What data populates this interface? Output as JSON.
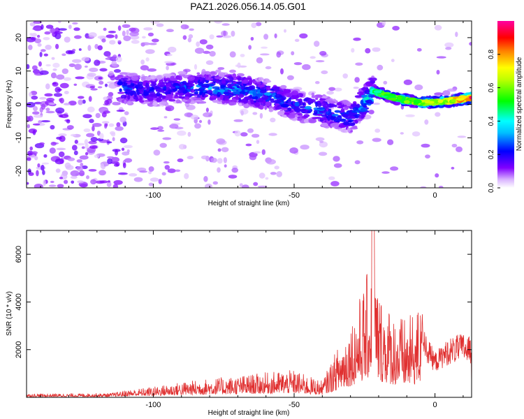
{
  "figure": {
    "title": "PAZ1.2026.056.14.05.G01"
  },
  "chart_data": [
    {
      "type": "heatmap",
      "name": "spectrogram",
      "xlabel": "Height of straight line (km)",
      "ylabel": "Frequency (Hz)",
      "xlim": [
        -145,
        13
      ],
      "ylim": [
        -25,
        25
      ],
      "x_ticks": [
        -100,
        -50,
        0
      ],
      "y_ticks": [
        -20,
        -10,
        0,
        10,
        20
      ],
      "colorbar": {
        "label": "Normalized spectral amplitude",
        "ticks": [
          0.0,
          0.2,
          0.4,
          0.6,
          0.8
        ],
        "range": [
          0,
          1
        ],
        "colormap": [
          "#ffffff",
          "#c070ff",
          "#8000ff",
          "#0000ff",
          "#00ffff",
          "#00ff00",
          "#ffff00",
          "#ff8000",
          "#ff0000",
          "#ff00ff"
        ]
      },
      "ridge": {
        "x": [
          -112,
          -100,
          -90,
          -80,
          -70,
          -60,
          -50,
          -40,
          -30,
          -22,
          -15,
          -5,
          5,
          13
        ],
        "frequency": [
          5,
          4,
          5,
          5,
          4.5,
          3,
          0,
          -2,
          -4,
          4,
          2,
          0.5,
          1,
          2
        ],
        "amplitude": [
          0.25,
          0.22,
          0.25,
          0.3,
          0.3,
          0.28,
          0.24,
          0.28,
          0.25,
          0.45,
          0.55,
          0.6,
          0.65,
          0.85
        ]
      }
    },
    {
      "type": "line",
      "name": "snr",
      "xlabel": "Height of straight line (km)",
      "ylabel": "SNR (10 * v/v)",
      "xlim": [
        -145,
        13
      ],
      "ylim": [
        0,
        7000
      ],
      "x_ticks": [
        -100,
        -50,
        0
      ],
      "y_ticks": [
        2000,
        4000,
        6000
      ],
      "series": [
        {
          "name": "SNR",
          "color": "#e03030",
          "envelope_x": [
            -145,
            -130,
            -115,
            -110,
            -100,
            -90,
            -80,
            -70,
            -60,
            -50,
            -45,
            -40,
            -35,
            -30,
            -25,
            -22,
            -20,
            -15,
            -10,
            -5,
            -3,
            0,
            5,
            10,
            13
          ],
          "envelope_y": [
            150,
            160,
            180,
            300,
            450,
            650,
            800,
            900,
            1050,
            1150,
            900,
            700,
            2000,
            3200,
            4800,
            6200,
            4500,
            3600,
            3300,
            3900,
            2600,
            1900,
            2500,
            2700,
            2500
          ]
        }
      ]
    }
  ]
}
